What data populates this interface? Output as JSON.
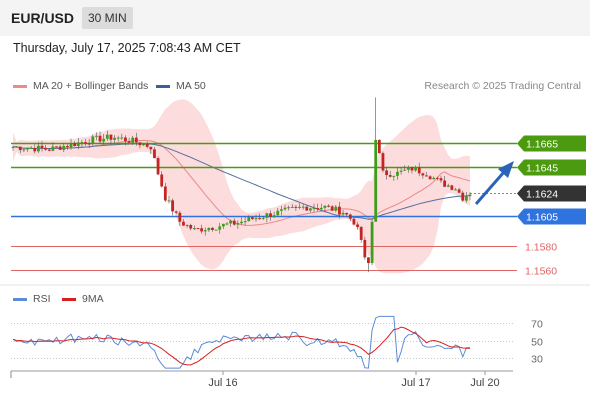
{
  "header": {
    "symbol": "EUR/USD",
    "interval": "30 MIN",
    "datetime": "Thursday, July 17, 2025 7:08:43 AM CET",
    "credit": "Research © 2025 Trading Central"
  },
  "legend": {
    "ma20": "MA 20 + Bollinger Bands",
    "ma50": "MA 50",
    "rsi": "RSI",
    "rsi_ma": "9MA"
  },
  "colors": {
    "bull": "#3f9c1c",
    "bear": "#c62424",
    "resistance": "#4c9a10",
    "support": "#2f73de",
    "last": "#333333",
    "lower": "#e06666",
    "bollinger": "#fbd0d0",
    "ma20": "#e88a8a",
    "ma50": "#556fa0",
    "rsi": "#5b8bd9",
    "rsi_ma": "#d62020",
    "arrow": "#2a63b8"
  },
  "chart_data": {
    "type": "candlestick",
    "x_labels": [
      "Jul 16",
      "Jul 17",
      "Jul 20"
    ],
    "price_range": [
      1.1549,
      1.1705
    ],
    "levels": [
      {
        "label": "1.1665",
        "value": 1.1665,
        "kind": "resistance"
      },
      {
        "label": "1.1645",
        "value": 1.1645,
        "kind": "resistance"
      },
      {
        "label": "1.1624",
        "value": 1.1624,
        "kind": "last"
      },
      {
        "label": "1.1605",
        "value": 1.1605,
        "kind": "support"
      },
      {
        "label": "1.1580",
        "value": 1.158,
        "kind": "lower"
      },
      {
        "label": "1.1560",
        "value": 1.156,
        "kind": "lower"
      }
    ],
    "rsi_ticks": [
      "70",
      "50",
      "30"
    ],
    "rsi_range": [
      10,
      90
    ]
  }
}
